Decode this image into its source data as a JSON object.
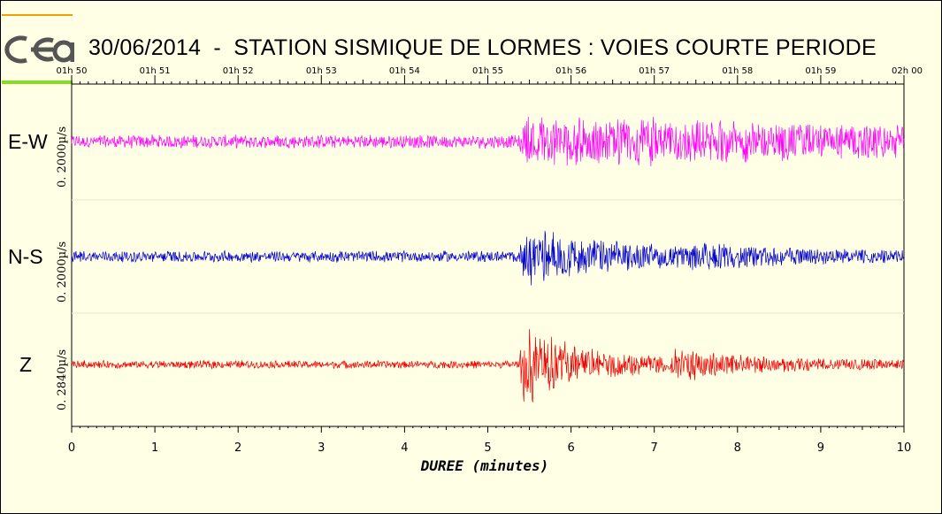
{
  "header": {
    "title": "30/06/2014  -  STATION SISMIQUE DE LORMES : VOIES COURTE PERIODE",
    "logo_text": "cea"
  },
  "colors": {
    "background": "#ffffe6",
    "logo_top_bar": "#f0a000",
    "logo_bottom_bar": "#88dd22",
    "ew": "#ff00ff",
    "ns": "#0000cc",
    "z": "#ee0000"
  },
  "chart_data": {
    "type": "line",
    "title": "30/06/2014  -  STATION SISMIQUE DE LORMES : VOIES COURTE PERIODE",
    "xlabel": "DUREE (minutes)",
    "xlim": [
      0,
      10
    ],
    "x_ticks": [
      "0",
      "1",
      "2",
      "3",
      "4",
      "5",
      "6",
      "7",
      "8",
      "9",
      "10"
    ],
    "top_axis_ticks": [
      "01h 50",
      "01h 51",
      "01h 52",
      "01h 53",
      "01h 54",
      "01h 55",
      "01h 56",
      "01h 57",
      "01h 58",
      "01h 59",
      "02h 00"
    ],
    "grid": false,
    "legend": "none",
    "series": [
      {
        "name": "E-W",
        "scale_label": "0. 2000µ/s",
        "color": "#ff00ff",
        "background_amplitude": 0.12,
        "events": [
          {
            "start": 5.38,
            "decay_minutes": 8.0,
            "amplitude": 0.38
          }
        ]
      },
      {
        "name": "N-S",
        "scale_label": "0. 2000µ/s",
        "color": "#0000cc",
        "background_amplitude": 0.1,
        "events": [
          {
            "start": 5.38,
            "decay_minutes": 1.2,
            "amplitude": 0.5
          },
          {
            "start": 7.4,
            "decay_minutes": 1.0,
            "amplitude": 0.16
          }
        ]
      },
      {
        "name": "Z",
        "scale_label": "0. 2840µ/s",
        "color": "#ee0000",
        "background_amplitude": 0.07,
        "events": [
          {
            "start": 5.38,
            "decay_minutes": 0.45,
            "amplitude": 0.85
          },
          {
            "start": 5.6,
            "decay_minutes": 1.5,
            "amplitude": 0.22
          },
          {
            "start": 7.2,
            "decay_minutes": 0.9,
            "amplitude": 0.22
          }
        ]
      }
    ]
  }
}
